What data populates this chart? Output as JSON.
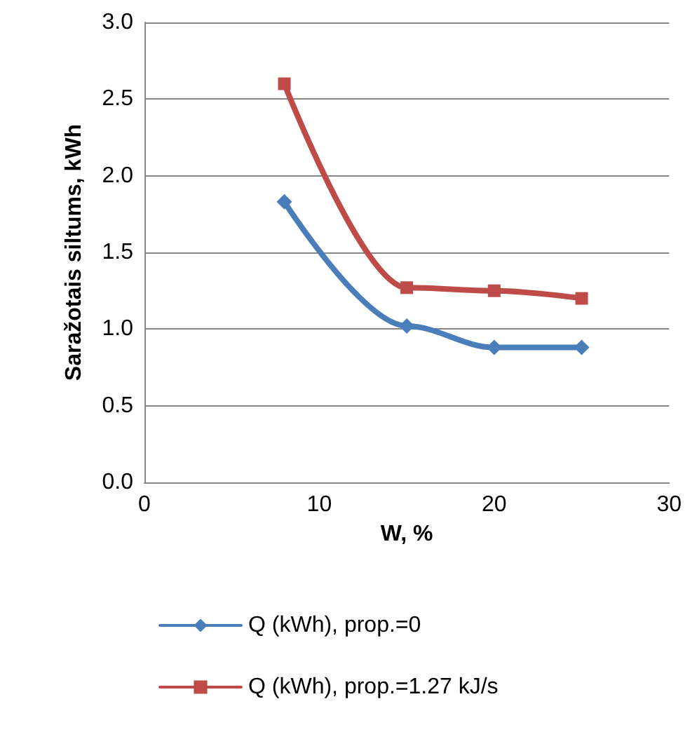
{
  "chart_data": {
    "type": "line",
    "xlabel": "W, %",
    "ylabel": "Saražotais siltums, kWh",
    "xlim": [
      0,
      30
    ],
    "xticks": [
      0,
      10,
      20,
      30
    ],
    "ylim": [
      0,
      3
    ],
    "yticks": [
      {
        "value": 0,
        "label": "0.0"
      },
      {
        "value": 0.5,
        "label": "0.5"
      },
      {
        "value": 1,
        "label": "1.0"
      },
      {
        "value": 1.5,
        "label": "1.5"
      },
      {
        "value": 2,
        "label": "2.0"
      },
      {
        "value": 2.5,
        "label": "2.5"
      },
      {
        "value": 3,
        "label": "3.0"
      }
    ],
    "grid": "y",
    "legend": "bottom",
    "line_style": "solid",
    "series": [
      {
        "name": "Q (kWh), prop.=0",
        "color": "#4a7ebb",
        "marker": "diamond",
        "x": [
          8,
          15,
          20,
          25
        ],
        "values": [
          1.83,
          1.02,
          0.88,
          0.88
        ]
      },
      {
        "name": "Q (kWh), prop.=1.27 kJ/s",
        "color": "#be4b48",
        "marker": "square",
        "x": [
          8,
          15,
          20,
          25
        ],
        "values": [
          2.6,
          1.27,
          1.25,
          1.2
        ]
      }
    ]
  }
}
